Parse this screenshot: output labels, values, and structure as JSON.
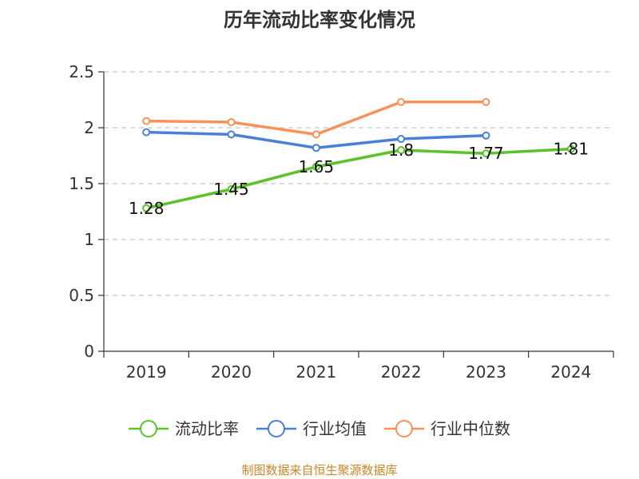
{
  "chart_data": {
    "type": "line",
    "title": "历年流动比率变化情况",
    "categories": [
      "2019",
      "2020",
      "2021",
      "2022",
      "2023",
      "2024"
    ],
    "ylim": [
      0,
      2.5
    ],
    "yticks": [
      "0",
      "0.5",
      "1",
      "1.5",
      "2",
      "2.5"
    ],
    "grid": true,
    "legend_position": "bottom",
    "series": [
      {
        "name": "流动比率",
        "color": "#5cc22a",
        "values": [
          1.28,
          1.45,
          1.65,
          1.8,
          1.77,
          1.81
        ],
        "labels": [
          "1.28",
          "1.45",
          "1.65",
          "1.8",
          "1.77",
          "1.81"
        ]
      },
      {
        "name": "行业均值",
        "color": "#4a7fd6",
        "values": [
          1.96,
          1.94,
          1.82,
          1.9,
          1.93,
          null
        ]
      },
      {
        "name": "行业中位数",
        "color": "#f7935a",
        "values": [
          2.06,
          2.05,
          1.94,
          2.23,
          2.23,
          null
        ]
      }
    ]
  },
  "source": "制图数据来自恒生聚源数据库"
}
